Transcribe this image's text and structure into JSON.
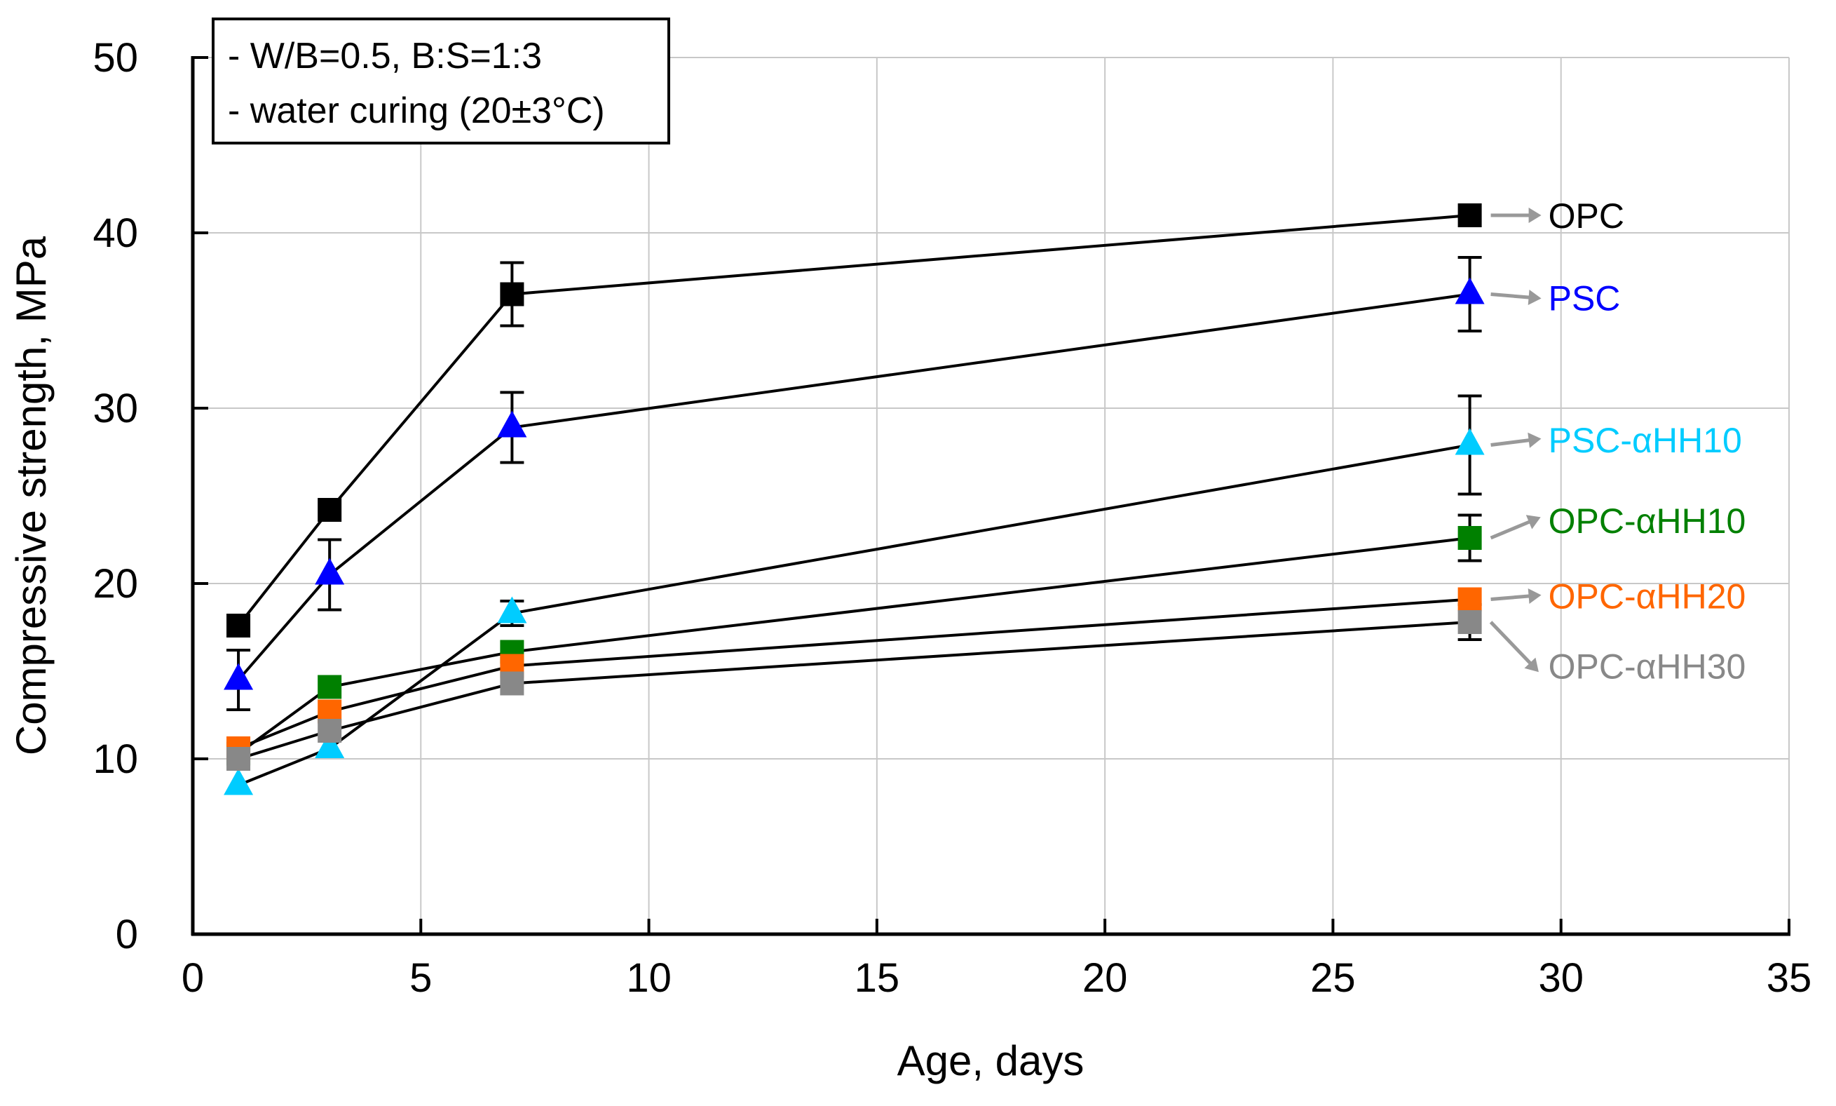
{
  "chart_data": {
    "type": "line",
    "xlabel": "Age, days",
    "ylabel": "Compressive strength, MPa",
    "xlim": [
      0,
      35
    ],
    "ylim": [
      0,
      50
    ],
    "x_ticks": [
      0,
      5,
      10,
      15,
      20,
      25,
      30,
      35
    ],
    "y_ticks": [
      0,
      10,
      20,
      30,
      40,
      50
    ],
    "x_tick_labels": [
      "0",
      "5",
      "10",
      "15",
      "20",
      "25",
      "30",
      "35"
    ],
    "y_tick_labels": [
      "0",
      "10",
      "20",
      "30",
      "40",
      "50"
    ],
    "grid": true,
    "annotations": [
      "- W/B=0.5,  B:S=1:3",
      "- water curing (20±3°C)"
    ],
    "x": [
      1,
      3,
      7,
      28
    ],
    "series": [
      {
        "name": "OPC",
        "marker": "square",
        "color": "#000000",
        "label_color": "#000000",
        "values": [
          17.6,
          24.2,
          36.5,
          41.0
        ],
        "errors": [
          null,
          null,
          1.8,
          null
        ],
        "label_anchor_y": 41.0
      },
      {
        "name": "PSC",
        "marker": "triangle",
        "color": "#0000ff",
        "label_color": "#0000ff",
        "values": [
          14.5,
          20.5,
          28.9,
          36.5
        ],
        "errors": [
          1.7,
          2.0,
          2.0,
          2.1
        ],
        "label_anchor_y": 36.3
      },
      {
        "name": "PSC-αHH10",
        "marker": "triangle",
        "color": "#00ccff",
        "label_color": "#00ccff",
        "values": [
          8.5,
          10.6,
          18.3,
          27.9
        ],
        "errors": [
          null,
          null,
          0.7,
          2.8
        ],
        "label_anchor_y": 28.2
      },
      {
        "name": "OPC-αHH10",
        "marker": "square",
        "color": "#008000",
        "label_color": "#008000",
        "values": [
          10.3,
          14.1,
          16.1,
          22.6
        ],
        "errors": [
          null,
          null,
          null,
          1.3
        ],
        "label_anchor_y": 23.6
      },
      {
        "name": "OPC-αHH20",
        "marker": "square",
        "color": "#ff6600",
        "label_color": "#ff6600",
        "values": [
          10.6,
          12.7,
          15.3,
          19.1
        ],
        "errors": [
          null,
          null,
          null,
          null
        ],
        "label_anchor_y": 19.3
      },
      {
        "name": "OPC-αHH30",
        "marker": "square",
        "color": "#888888",
        "label_color": "#888888",
        "values": [
          10.0,
          11.6,
          14.3,
          17.8
        ],
        "errors": [
          null,
          null,
          null,
          1.0
        ],
        "label_anchor_y": 15.3
      }
    ]
  }
}
